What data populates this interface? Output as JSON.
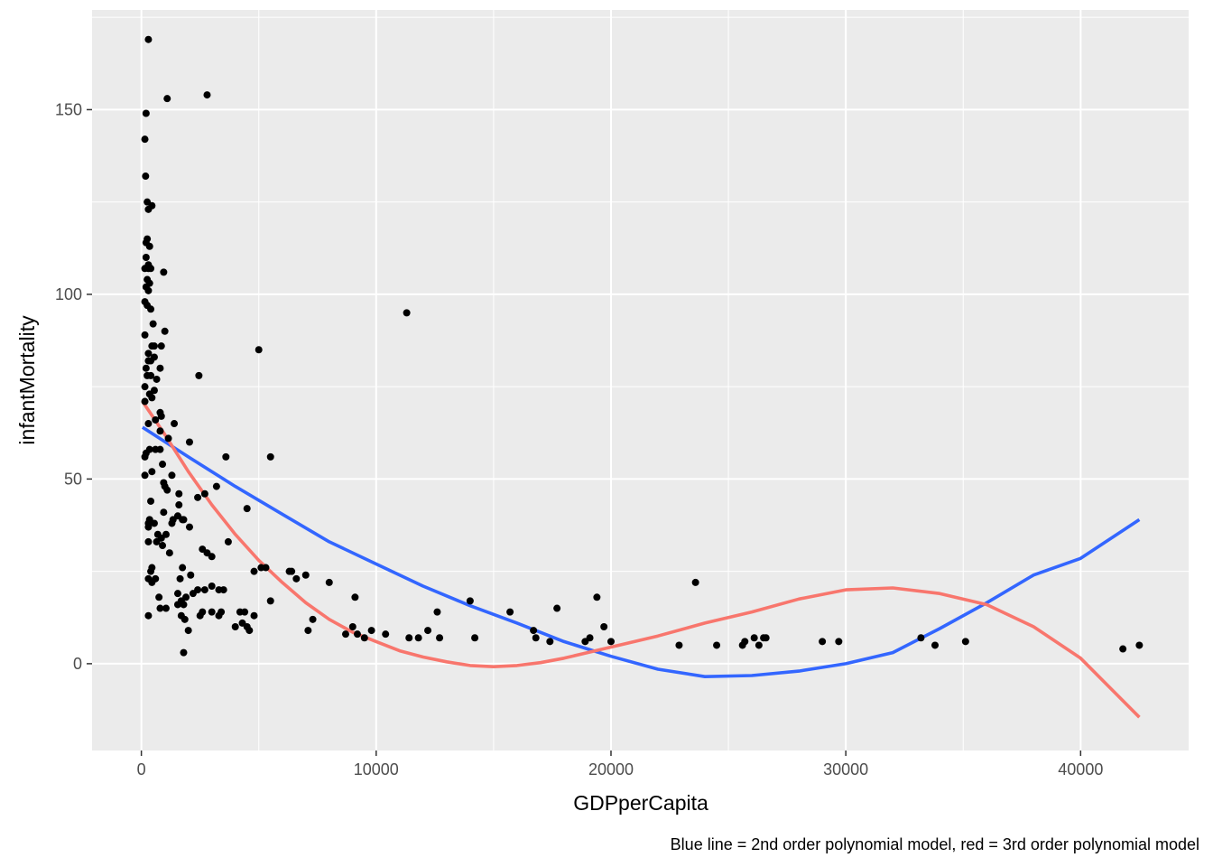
{
  "chart_data": {
    "type": "scatter",
    "title": "",
    "xlabel": "GDPperCapita",
    "ylabel": "infantMortality",
    "caption": "Blue line = 2nd order polynomial model, red = 3rd order polynomial model",
    "xlim": [
      -2100,
      44600
    ],
    "ylim": [
      -23.5,
      177
    ],
    "x_ticks": [
      0,
      10000,
      20000,
      30000,
      40000
    ],
    "x_tick_labels": [
      "0",
      "10000",
      "20000",
      "30000",
      "40000"
    ],
    "y_ticks": [
      0,
      50,
      100,
      150
    ],
    "y_tick_labels": [
      "0",
      "50",
      "100",
      "150"
    ],
    "grid": true,
    "colors": {
      "panel": "#ebebeb",
      "grid": "#ffffff",
      "points": "#000000",
      "model2": "#3366ff",
      "model3": "#f8766d"
    },
    "points": [
      [
        300,
        169
      ],
      [
        200,
        149
      ],
      [
        150,
        142
      ],
      [
        180,
        132
      ],
      [
        2800,
        154
      ],
      [
        1100,
        153
      ],
      [
        250,
        125
      ],
      [
        300,
        123
      ],
      [
        450,
        124
      ],
      [
        250,
        115
      ],
      [
        200,
        114
      ],
      [
        350,
        113
      ],
      [
        200,
        110
      ],
      [
        300,
        108
      ],
      [
        150,
        107
      ],
      [
        300,
        107
      ],
      [
        400,
        107
      ],
      [
        950,
        106
      ],
      [
        250,
        104
      ],
      [
        350,
        103
      ],
      [
        200,
        102
      ],
      [
        300,
        101
      ],
      [
        150,
        98
      ],
      [
        250,
        97
      ],
      [
        400,
        96
      ],
      [
        500,
        92
      ],
      [
        1000,
        90
      ],
      [
        150,
        89
      ],
      [
        550,
        86
      ],
      [
        850,
        86
      ],
      [
        450,
        86
      ],
      [
        300,
        84
      ],
      [
        550,
        83
      ],
      [
        400,
        82
      ],
      [
        300,
        82
      ],
      [
        200,
        80
      ],
      [
        800,
        80
      ],
      [
        250,
        78
      ],
      [
        400,
        78
      ],
      [
        650,
        77
      ],
      [
        2450,
        78
      ],
      [
        5000,
        85
      ],
      [
        11300,
        95
      ],
      [
        150,
        75
      ],
      [
        350,
        73
      ],
      [
        550,
        74
      ],
      [
        150,
        71
      ],
      [
        450,
        72
      ],
      [
        800,
        68
      ],
      [
        850,
        67
      ],
      [
        600,
        66
      ],
      [
        300,
        65
      ],
      [
        1400,
        65
      ],
      [
        800,
        63
      ],
      [
        1150,
        61
      ],
      [
        200,
        57
      ],
      [
        350,
        58
      ],
      [
        600,
        58
      ],
      [
        800,
        58
      ],
      [
        150,
        56
      ],
      [
        2050,
        60
      ],
      [
        3600,
        56
      ],
      [
        5500,
        56
      ],
      [
        900,
        54
      ],
      [
        150,
        51
      ],
      [
        450,
        52
      ],
      [
        1300,
        51
      ],
      [
        950,
        49
      ],
      [
        1000,
        48
      ],
      [
        3200,
        48
      ],
      [
        1100,
        47
      ],
      [
        1600,
        46
      ],
      [
        2700,
        46
      ],
      [
        400,
        44
      ],
      [
        2400,
        45
      ],
      [
        1600,
        43
      ],
      [
        4500,
        42
      ],
      [
        950,
        41
      ],
      [
        350,
        39
      ],
      [
        550,
        38
      ],
      [
        300,
        38
      ],
      [
        1300,
        38
      ],
      [
        1550,
        40
      ],
      [
        1750,
        39
      ],
      [
        2050,
        37
      ],
      [
        1800,
        39
      ],
      [
        1350,
        39
      ],
      [
        300,
        37
      ],
      [
        700,
        35
      ],
      [
        850,
        34
      ],
      [
        1050,
        35
      ],
      [
        650,
        33
      ],
      [
        900,
        32
      ],
      [
        300,
        33
      ],
      [
        1200,
        30
      ],
      [
        2600,
        31
      ],
      [
        2800,
        30
      ],
      [
        3000,
        29
      ],
      [
        3700,
        33
      ],
      [
        4400,
        14
      ],
      [
        4300,
        11
      ],
      [
        450,
        26
      ],
      [
        400,
        25
      ],
      [
        1750,
        26
      ],
      [
        4800,
        25
      ],
      [
        5300,
        26
      ],
      [
        5100,
        26
      ],
      [
        6300,
        25
      ],
      [
        6400,
        25
      ],
      [
        6600,
        23
      ],
      [
        7000,
        24
      ],
      [
        300,
        23
      ],
      [
        450,
        22
      ],
      [
        600,
        23
      ],
      [
        2100,
        24
      ],
      [
        2400,
        20
      ],
      [
        2700,
        20
      ],
      [
        1650,
        23
      ],
      [
        3000,
        21
      ],
      [
        3300,
        20
      ],
      [
        3500,
        20
      ],
      [
        1550,
        19
      ],
      [
        2200,
        19
      ],
      [
        1700,
        17
      ],
      [
        1900,
        18
      ],
      [
        1550,
        16
      ],
      [
        1800,
        16
      ],
      [
        2600,
        14
      ],
      [
        3000,
        14
      ],
      [
        3400,
        14
      ],
      [
        750,
        18
      ],
      [
        800,
        15
      ],
      [
        1050,
        15
      ],
      [
        8000,
        22
      ],
      [
        9100,
        18
      ],
      [
        5500,
        17
      ],
      [
        300,
        13
      ],
      [
        1700,
        13
      ],
      [
        1850,
        12
      ],
      [
        2500,
        13
      ],
      [
        3300,
        13
      ],
      [
        4200,
        14
      ],
      [
        4800,
        13
      ],
      [
        7300,
        12
      ],
      [
        4500,
        10
      ],
      [
        4000,
        10
      ],
      [
        4600,
        9
      ],
      [
        7100,
        9
      ],
      [
        8700,
        8
      ],
      [
        9000,
        10
      ],
      [
        9200,
        8
      ],
      [
        9500,
        7
      ],
      [
        9800,
        9
      ],
      [
        10400,
        8
      ],
      [
        1800,
        3
      ],
      [
        2000,
        9
      ],
      [
        11400,
        7
      ],
      [
        11800,
        7
      ],
      [
        12200,
        9
      ],
      [
        12600,
        14
      ],
      [
        12700,
        7
      ],
      [
        14000,
        17
      ],
      [
        14200,
        7
      ],
      [
        15700,
        14
      ],
      [
        16700,
        9
      ],
      [
        16800,
        7
      ],
      [
        17400,
        6
      ],
      [
        17700,
        15
      ],
      [
        18900,
        6
      ],
      [
        19100,
        7
      ],
      [
        19400,
        18
      ],
      [
        19700,
        10
      ],
      [
        20000,
        6
      ],
      [
        22900,
        5
      ],
      [
        23600,
        22
      ],
      [
        24500,
        5
      ],
      [
        25600,
        5
      ],
      [
        25700,
        6
      ],
      [
        26100,
        7
      ],
      [
        26300,
        5
      ],
      [
        26500,
        7
      ],
      [
        26600,
        7
      ],
      [
        29000,
        6
      ],
      [
        29700,
        6
      ],
      [
        33200,
        7
      ],
      [
        33800,
        5
      ],
      [
        35100,
        6
      ],
      [
        41800,
        4
      ],
      [
        42500,
        5
      ]
    ],
    "series": [
      {
        "model": "2nd order polynomial",
        "color": "#3366ff",
        "x": [
          50,
          2000,
          4000,
          6000,
          8000,
          10000,
          12000,
          14000,
          16000,
          18000,
          20000,
          22000,
          24000,
          26000,
          28000,
          30000,
          32000,
          34000,
          36000,
          38000,
          40000,
          42500
        ],
        "y": [
          64,
          56,
          48,
          40.5,
          33,
          27,
          21,
          15.7,
          11,
          6,
          2,
          -1.5,
          -3.5,
          -3.2,
          -2,
          0,
          3,
          9.5,
          16.5,
          24,
          28.5,
          39
        ]
      },
      {
        "model": "3rd order polynomial",
        "color": "#f8766d",
        "x": [
          50,
          1000,
          2000,
          3000,
          4000,
          5000,
          6000,
          7000,
          8000,
          9000,
          10000,
          11000,
          12000,
          13000,
          14000,
          15000,
          16000,
          17000,
          18000,
          19000,
          20000,
          22000,
          24000,
          26000,
          28000,
          30000,
          32000,
          34000,
          36000,
          38000,
          40000,
          42500
        ],
        "y": [
          71,
          62,
          52,
          43,
          35,
          28,
          22,
          16.5,
          12,
          8.5,
          6,
          3.5,
          1.8,
          0.5,
          -0.5,
          -0.8,
          -0.5,
          0.3,
          1.5,
          3,
          4.5,
          7.5,
          11,
          14,
          17.5,
          20,
          20.5,
          19,
          16,
          10,
          1.5,
          -14.5
        ]
      }
    ]
  }
}
